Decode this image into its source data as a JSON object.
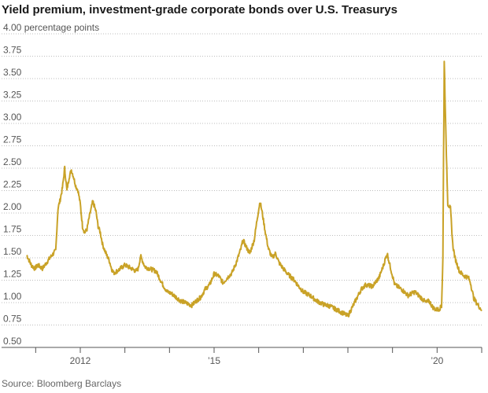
{
  "chart_data": {
    "type": "line",
    "title": "Yield premium, investment-grade corporate bonds over U.S. Treasurys",
    "ylabel_note": "percentage points",
    "xlabel": "",
    "ylim": [
      0.5,
      4.0
    ],
    "yticks": [
      0.5,
      0.75,
      1.0,
      1.25,
      1.5,
      1.75,
      2.0,
      2.25,
      2.5,
      2.75,
      3.0,
      3.25,
      3.5,
      3.75,
      4.0
    ],
    "ytick_labels": [
      "0.50",
      "0.75",
      "1.00",
      "1.25",
      "1.50",
      "1.75",
      "2.00",
      "2.25",
      "2.50",
      "2.75",
      "3.00",
      "3.25",
      "3.50",
      "3.75",
      "4.00"
    ],
    "xlim": [
      2010.8,
      2021.0
    ],
    "xticks": [
      2011,
      2012,
      2013,
      2014,
      2015,
      2016,
      2017,
      2018,
      2019,
      2020,
      2021
    ],
    "xtick_labels": [
      {
        "x": 2012,
        "label": "2012"
      },
      {
        "x": 2015,
        "label": "’15"
      },
      {
        "x": 2020,
        "label": "’20"
      }
    ],
    "line_color": "#c9a227",
    "series": [
      {
        "name": "Yield premium",
        "x": [
          2010.8,
          2010.9,
          2010.98,
          2011.05,
          2011.15,
          2011.25,
          2011.35,
          2011.45,
          2011.5,
          2011.55,
          2011.6,
          2011.65,
          2011.7,
          2011.75,
          2011.8,
          2011.85,
          2011.9,
          2011.95,
          2012.0,
          2012.05,
          2012.1,
          2012.15,
          2012.2,
          2012.28,
          2012.35,
          2012.4,
          2012.45,
          2012.5,
          2012.55,
          2012.6,
          2012.65,
          2012.7,
          2012.75,
          2012.85,
          2013.0,
          2013.15,
          2013.25,
          2013.3,
          2013.35,
          2013.45,
          2013.55,
          2013.7,
          2013.85,
          2013.95,
          2014.05,
          2014.15,
          2014.25,
          2014.4,
          2014.5,
          2014.6,
          2014.7,
          2014.8,
          2014.9,
          2015.0,
          2015.1,
          2015.2,
          2015.3,
          2015.4,
          2015.5,
          2015.6,
          2015.65,
          2015.72,
          2015.8,
          2015.9,
          2015.97,
          2016.03,
          2016.08,
          2016.15,
          2016.22,
          2016.3,
          2016.38,
          2016.45,
          2016.55,
          2016.65,
          2016.8,
          2016.9,
          2017.0,
          2017.15,
          2017.3,
          2017.45,
          2017.6,
          2017.75,
          2017.9,
          2018.0,
          2018.1,
          2018.2,
          2018.3,
          2018.4,
          2018.55,
          2018.7,
          2018.8,
          2018.88,
          2018.95,
          2019.05,
          2019.2,
          2019.35,
          2019.5,
          2019.65,
          2019.75,
          2019.82,
          2019.9,
          2019.97,
          2020.05,
          2020.1,
          2020.13,
          2020.16,
          2020.2,
          2020.24,
          2020.3,
          2020.35,
          2020.4,
          2020.5,
          2020.6,
          2020.7,
          2020.75,
          2020.82,
          2020.88,
          2020.95,
          2021.0
        ],
        "values": [
          1.53,
          1.42,
          1.38,
          1.42,
          1.38,
          1.45,
          1.52,
          1.58,
          2.05,
          2.15,
          2.28,
          2.5,
          2.25,
          2.4,
          2.48,
          2.4,
          2.3,
          2.25,
          2.1,
          1.85,
          1.78,
          1.82,
          1.95,
          2.13,
          2.02,
          1.85,
          1.78,
          1.65,
          1.58,
          1.52,
          1.47,
          1.38,
          1.33,
          1.36,
          1.42,
          1.38,
          1.35,
          1.38,
          1.52,
          1.4,
          1.38,
          1.35,
          1.2,
          1.12,
          1.1,
          1.06,
          1.02,
          0.99,
          0.97,
          1.02,
          1.06,
          1.15,
          1.2,
          1.32,
          1.3,
          1.22,
          1.28,
          1.33,
          1.45,
          1.6,
          1.7,
          1.62,
          1.55,
          1.7,
          1.95,
          2.13,
          2.0,
          1.78,
          1.6,
          1.5,
          1.55,
          1.45,
          1.38,
          1.32,
          1.25,
          1.18,
          1.12,
          1.08,
          1.02,
          0.98,
          0.96,
          0.92,
          0.88,
          0.85,
          0.95,
          1.05,
          1.15,
          1.2,
          1.18,
          1.28,
          1.42,
          1.55,
          1.4,
          1.2,
          1.15,
          1.08,
          1.12,
          1.05,
          1.0,
          1.02,
          0.95,
          0.92,
          0.93,
          0.96,
          1.5,
          3.7,
          2.8,
          2.1,
          2.05,
          1.65,
          1.5,
          1.35,
          1.3,
          1.28,
          1.22,
          1.05,
          1.0,
          0.95,
          0.92
        ]
      }
    ],
    "source": "Source: Bloomberg Barclays"
  }
}
